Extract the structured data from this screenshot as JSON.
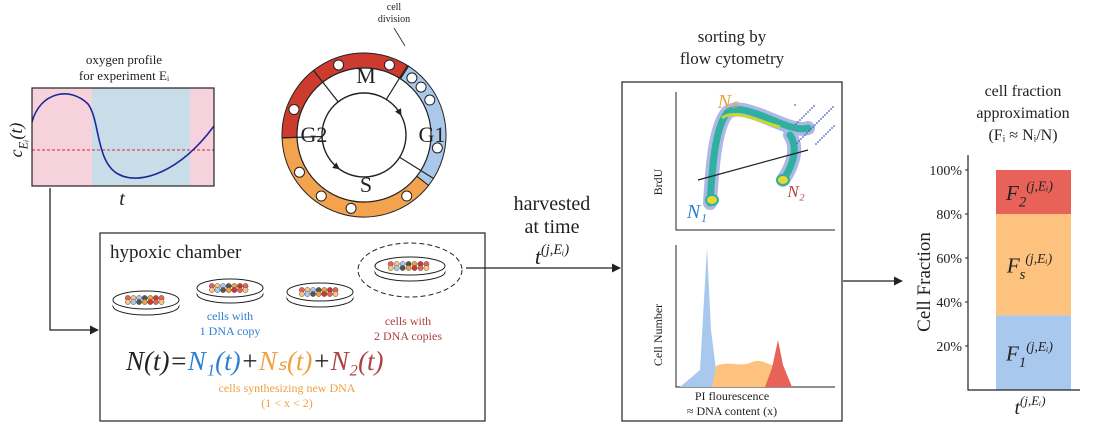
{
  "oxygen_profile": {
    "title": [
      "oxygen profile",
      "for experiment Eᵢ"
    ],
    "y_label": {
      "base": "c",
      "sub": "Eᵢ",
      "tail": "(t)"
    },
    "x_label": "t"
  },
  "cell_cycle": {
    "annotation": [
      "cell",
      "division"
    ],
    "phases": [
      "M",
      "G1",
      "S",
      "G2"
    ]
  },
  "chamber": {
    "title": "hypoxic chamber",
    "labels": [
      {
        "lines": [
          "cells with",
          "1 DNA copy"
        ],
        "color": "#2f7fd0"
      },
      {
        "lines": [
          "cells with",
          "2 DNA copies"
        ],
        "color": "#b0413e"
      },
      {
        "lines": [
          "cells synthesizing new DNA",
          "(1 < x < 2)"
        ],
        "color": "#f0a040"
      }
    ],
    "equation": [
      {
        "text": "N(t)",
        "color": "#222222"
      },
      {
        "text": "=",
        "color": "#222222"
      },
      {
        "text": "N₁(t)",
        "color": "#2f7fd0"
      },
      {
        "text": "+",
        "color": "#222222"
      },
      {
        "text": "Nₛ(t)",
        "color": "#f0a040"
      },
      {
        "text": "+",
        "color": "#222222"
      },
      {
        "text": "N₂(t)",
        "color": "#b0413e"
      }
    ]
  },
  "harvest": {
    "lines": [
      "harvested",
      "at time"
    ],
    "time": {
      "base": "t",
      "sup": "(j,Eᵢ)"
    }
  },
  "flow": {
    "title": [
      "sorting by",
      "flow cytometry"
    ],
    "scatter_y": "BrdU",
    "hist_y": "Cell Number",
    "x_label": [
      "PI flourescence",
      "≈ DNA content (x)"
    ],
    "gates": [
      {
        "text": "Nₛ",
        "color": "#f0a040"
      },
      {
        "text": "N₁",
        "color": "#2f7fd0"
      },
      {
        "text": "N₂",
        "color": "#b0413e"
      }
    ]
  },
  "chart_data": {
    "type": "bar",
    "stacked": true,
    "title": [
      "cell fraction",
      "approximation",
      "(Fᵢ ≈ Nᵢ/N)"
    ],
    "y_label": "Cell Fraction",
    "categories": [
      {
        "base": "t",
        "sup": "(j,Eᵢ)"
      }
    ],
    "series": [
      {
        "label": {
          "base": "F",
          "sub": "1",
          "sup": "(j,Eᵢ)"
        },
        "color": "#a8c8ee",
        "values": [
          34
        ]
      },
      {
        "label": {
          "base": "F",
          "sub": "s",
          "sup": "(j,Eᵢ)"
        },
        "color": "#fdc37e",
        "values": [
          46
        ]
      },
      {
        "label": {
          "base": "F",
          "sub": "2",
          "sup": "(j,Eᵢ)"
        },
        "color": "#e8625a",
        "values": [
          20
        ]
      }
    ],
    "ylim": [
      0,
      100
    ],
    "yticks": [
      {
        "value": 20,
        "label": "20%"
      },
      {
        "value": 40,
        "label": "40%"
      },
      {
        "value": 60,
        "label": "60%"
      },
      {
        "value": 80,
        "label": "80%"
      },
      {
        "value": 100,
        "label": "100%"
      }
    ]
  }
}
